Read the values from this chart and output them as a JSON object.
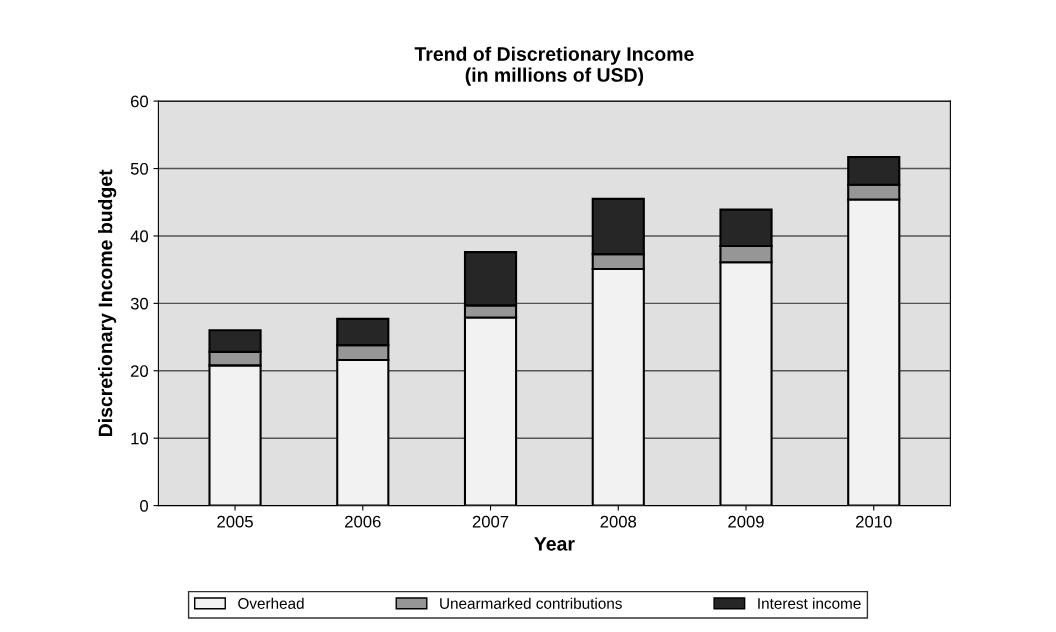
{
  "chart_data": {
    "type": "bar",
    "title": "Trend of Discretionary Income\n(in millions of USD)",
    "xlabel": "Year",
    "ylabel": "Discretionary Income budget",
    "categories": [
      "2005",
      "2006",
      "2007",
      "2008",
      "2009",
      "2010"
    ],
    "stacked": true,
    "series": [
      {
        "name": "Overhead",
        "color": "#f2f2f2",
        "values": [
          20.8,
          21.6,
          27.9,
          35.1,
          36.1,
          45.4
        ]
      },
      {
        "name": "Unearmarked contributions",
        "color": "#969696",
        "values": [
          2.0,
          2.2,
          1.8,
          2.2,
          2.4,
          2.2
        ]
      },
      {
        "name": "Interest income",
        "color": "#262626",
        "values": [
          3.2,
          3.9,
          7.9,
          8.2,
          5.4,
          4.1
        ]
      }
    ],
    "ylim": [
      0,
      60
    ],
    "yticks": [
      0,
      10,
      20,
      30,
      40,
      50,
      60
    ],
    "grid": "y",
    "legend": "bottom"
  }
}
